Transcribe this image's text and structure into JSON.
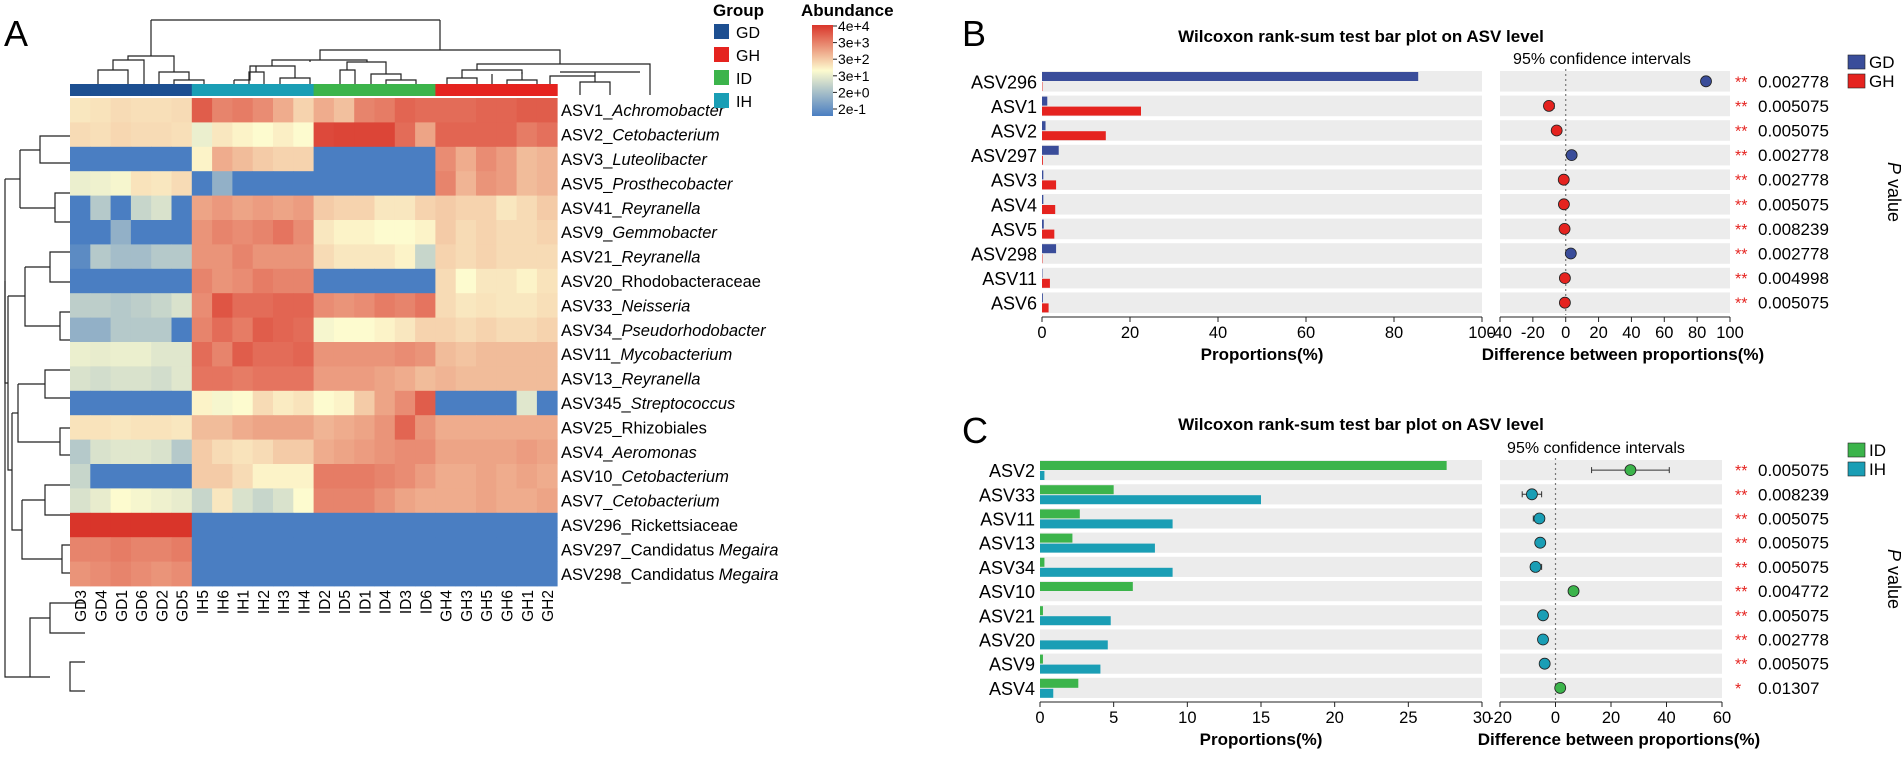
{
  "panel_labels": {
    "A": "A",
    "B": "B",
    "C": "C"
  },
  "chart_data": [
    {
      "type": "heatmap",
      "panel": "A",
      "columns": [
        "GD3",
        "GD4",
        "GD1",
        "GD6",
        "GD2",
        "GD5",
        "IH5",
        "IH6",
        "IH1",
        "IH2",
        "IH3",
        "IH4",
        "ID2",
        "ID5",
        "ID1",
        "ID4",
        "ID3",
        "ID6",
        "GH4",
        "GH3",
        "GH5",
        "GH6",
        "GH1",
        "GH2"
      ],
      "column_groups": [
        "GD",
        "GD",
        "GD",
        "GD",
        "GD",
        "GD",
        "IH",
        "IH",
        "IH",
        "IH",
        "IH",
        "IH",
        "ID",
        "ID",
        "ID",
        "ID",
        "ID",
        "ID",
        "GH",
        "GH",
        "GH",
        "GH",
        "GH",
        "GH"
      ],
      "rows": [
        {
          "id": "ASV1_",
          "taxon": "Achromobacter",
          "italic": true
        },
        {
          "id": "ASV2_",
          "taxon": "Cetobacterium",
          "italic": true
        },
        {
          "id": "ASV3_",
          "taxon": "Luteolibacter",
          "italic": true
        },
        {
          "id": "ASV5_",
          "taxon": "Prosthecobacter",
          "italic": true
        },
        {
          "id": "ASV41_",
          "taxon": "Reyranella",
          "italic": true
        },
        {
          "id": "ASV9_",
          "taxon": "Gemmobacter",
          "italic": true
        },
        {
          "id": "ASV21_",
          "taxon": "Reyranella",
          "italic": true
        },
        {
          "id": "ASV20_",
          "taxon": "Rhodobacteraceae",
          "italic": false
        },
        {
          "id": "ASV33_",
          "taxon": "Neisseria",
          "italic": true
        },
        {
          "id": "ASV34_",
          "taxon": "Pseudorhodobacter",
          "italic": true
        },
        {
          "id": "ASV11_",
          "taxon": "Mycobacterium",
          "italic": true
        },
        {
          "id": "ASV13_",
          "taxon": "Reyranella",
          "italic": true
        },
        {
          "id": "ASV345_",
          "taxon": "Streptococcus",
          "italic": true
        },
        {
          "id": "ASV25_",
          "taxon": "Rhizobiales",
          "italic": false
        },
        {
          "id": "ASV4_",
          "taxon": "Aeromonas",
          "italic": true
        },
        {
          "id": "ASV10_",
          "taxon": "Cetobacterium",
          "italic": true
        },
        {
          "id": "ASV7_",
          "taxon": "Cetobacterium",
          "italic": true
        },
        {
          "id": "ASV296_",
          "taxon": "Rickettsiaceae",
          "italic": false
        },
        {
          "id": "ASV297_Candidatus ",
          "taxon": "Megaira",
          "italic": true
        },
        {
          "id": "ASV298_Candidatus ",
          "taxon": "Megaira",
          "italic": true
        }
      ],
      "values_scale": "0 = 2e-1 (blue) ... 1 = 4e+4 (red)",
      "values": [
        [
          0.55,
          0.56,
          0.58,
          0.57,
          0.57,
          0.58,
          0.9,
          0.8,
          0.82,
          0.78,
          0.7,
          0.6,
          0.7,
          0.65,
          0.8,
          0.82,
          0.88,
          0.86,
          0.86,
          0.86,
          0.88,
          0.88,
          0.9,
          0.9
        ],
        [
          0.58,
          0.57,
          0.59,
          0.58,
          0.58,
          0.57,
          0.45,
          0.55,
          0.52,
          0.5,
          0.53,
          0.5,
          0.95,
          0.96,
          0.96,
          0.96,
          0.86,
          0.72,
          0.88,
          0.88,
          0.88,
          0.88,
          0.82,
          0.85
        ],
        [
          0.0,
          0.0,
          0.0,
          0.0,
          0.0,
          0.0,
          0.52,
          0.7,
          0.66,
          0.62,
          0.6,
          0.6,
          0.0,
          0.0,
          0.0,
          0.0,
          0.0,
          0.0,
          0.78,
          0.7,
          0.78,
          0.74,
          0.66,
          0.68
        ],
        [
          0.45,
          0.46,
          0.48,
          0.56,
          0.55,
          0.58,
          0.0,
          0.2,
          0.0,
          0.0,
          0.0,
          0.0,
          0.0,
          0.0,
          0.0,
          0.0,
          0.0,
          0.0,
          0.8,
          0.68,
          0.76,
          0.74,
          0.66,
          0.68
        ],
        [
          0.0,
          0.3,
          0.0,
          0.35,
          0.4,
          0.0,
          0.72,
          0.75,
          0.72,
          0.74,
          0.72,
          0.74,
          0.62,
          0.6,
          0.6,
          0.55,
          0.55,
          0.6,
          0.62,
          0.6,
          0.6,
          0.55,
          0.58,
          0.62
        ],
        [
          0.0,
          0.0,
          0.2,
          0.0,
          0.0,
          0.0,
          0.76,
          0.8,
          0.78,
          0.8,
          0.84,
          0.78,
          0.55,
          0.52,
          0.52,
          0.5,
          0.5,
          0.52,
          0.62,
          0.58,
          0.6,
          0.58,
          0.58,
          0.6
        ],
        [
          0.05,
          0.3,
          0.25,
          0.25,
          0.3,
          0.3,
          0.76,
          0.76,
          0.8,
          0.76,
          0.76,
          0.76,
          0.58,
          0.55,
          0.55,
          0.55,
          0.52,
          0.35,
          0.6,
          0.58,
          0.6,
          0.58,
          0.58,
          0.58
        ],
        [
          0.0,
          0.0,
          0.0,
          0.0,
          0.0,
          0.0,
          0.8,
          0.76,
          0.78,
          0.82,
          0.8,
          0.8,
          0.0,
          0.0,
          0.0,
          0.0,
          0.0,
          0.0,
          0.58,
          0.5,
          0.55,
          0.55,
          0.52,
          0.56
        ],
        [
          0.32,
          0.32,
          0.3,
          0.32,
          0.35,
          0.4,
          0.78,
          0.92,
          0.86,
          0.86,
          0.88,
          0.88,
          0.78,
          0.76,
          0.78,
          0.82,
          0.8,
          0.84,
          0.58,
          0.55,
          0.56,
          0.55,
          0.55,
          0.57
        ],
        [
          0.2,
          0.2,
          0.3,
          0.3,
          0.3,
          0.0,
          0.8,
          0.86,
          0.82,
          0.9,
          0.88,
          0.86,
          0.48,
          0.5,
          0.5,
          0.52,
          0.55,
          0.6,
          0.6,
          0.58,
          0.6,
          0.58,
          0.58,
          0.6
        ],
        [
          0.45,
          0.44,
          0.45,
          0.45,
          0.42,
          0.42,
          0.86,
          0.8,
          0.9,
          0.86,
          0.86,
          0.88,
          0.76,
          0.76,
          0.76,
          0.76,
          0.78,
          0.76,
          0.66,
          0.64,
          0.66,
          0.66,
          0.66,
          0.66
        ],
        [
          0.4,
          0.38,
          0.4,
          0.4,
          0.38,
          0.42,
          0.84,
          0.84,
          0.82,
          0.84,
          0.84,
          0.84,
          0.74,
          0.74,
          0.74,
          0.72,
          0.7,
          0.66,
          0.68,
          0.66,
          0.66,
          0.66,
          0.66,
          0.66
        ],
        [
          0.0,
          0.0,
          0.0,
          0.0,
          0.0,
          0.0,
          0.52,
          0.48,
          0.5,
          0.58,
          0.54,
          0.56,
          0.5,
          0.52,
          0.62,
          0.72,
          0.78,
          0.9,
          0.0,
          0.0,
          0.0,
          0.0,
          0.42,
          0.0
        ],
        [
          0.56,
          0.56,
          0.55,
          0.56,
          0.56,
          0.55,
          0.66,
          0.66,
          0.7,
          0.72,
          0.72,
          0.72,
          0.68,
          0.7,
          0.72,
          0.76,
          0.88,
          0.76,
          0.7,
          0.7,
          0.7,
          0.7,
          0.7,
          0.7
        ],
        [
          0.3,
          0.4,
          0.42,
          0.42,
          0.4,
          0.3,
          0.62,
          0.58,
          0.56,
          0.58,
          0.62,
          0.62,
          0.7,
          0.72,
          0.74,
          0.76,
          0.78,
          0.78,
          0.72,
          0.72,
          0.72,
          0.72,
          0.74,
          0.72
        ],
        [
          0.35,
          0.0,
          0.0,
          0.0,
          0.0,
          0.0,
          0.62,
          0.62,
          0.58,
          0.52,
          0.52,
          0.52,
          0.82,
          0.82,
          0.82,
          0.8,
          0.78,
          0.74,
          0.7,
          0.7,
          0.72,
          0.7,
          0.72,
          0.7
        ],
        [
          0.4,
          0.44,
          0.5,
          0.48,
          0.46,
          0.44,
          0.35,
          0.55,
          0.4,
          0.35,
          0.4,
          0.5,
          0.8,
          0.8,
          0.8,
          0.76,
          0.72,
          0.7,
          0.7,
          0.7,
          0.72,
          0.7,
          0.7,
          0.72
        ],
        [
          1.0,
          1.0,
          1.0,
          1.0,
          1.0,
          1.0,
          0.0,
          0.0,
          0.0,
          0.0,
          0.0,
          0.0,
          0.0,
          0.0,
          0.0,
          0.0,
          0.0,
          0.0,
          0.0,
          0.0,
          0.0,
          0.0,
          0.0,
          0.0
        ],
        [
          0.8,
          0.8,
          0.82,
          0.8,
          0.8,
          0.82,
          0.0,
          0.0,
          0.0,
          0.0,
          0.0,
          0.0,
          0.0,
          0.0,
          0.0,
          0.0,
          0.0,
          0.0,
          0.0,
          0.0,
          0.0,
          0.0,
          0.0,
          0.0
        ],
        [
          0.76,
          0.78,
          0.8,
          0.78,
          0.76,
          0.78,
          0.0,
          0.0,
          0.0,
          0.0,
          0.0,
          0.0,
          0.0,
          0.0,
          0.0,
          0.0,
          0.0,
          0.0,
          0.0,
          0.0,
          0.0,
          0.0,
          0.0,
          0.0
        ]
      ],
      "legend": {
        "group_title": "Group",
        "groups": [
          {
            "label": "GD",
            "color": "#1d4f91"
          },
          {
            "label": "GH",
            "color": "#e5231f"
          },
          {
            "label": "ID",
            "color": "#3cb44b"
          },
          {
            "label": "IH",
            "color": "#1a9eb5"
          }
        ],
        "abundance_title": "Abundance",
        "abundance_ticks": [
          "4e+4",
          "3e+3",
          "3e+2",
          "3e+1",
          "2e+0",
          "2e-1"
        ],
        "color_stops": [
          "#4a7ec2",
          "#fdfbcf",
          "#d9352a"
        ]
      }
    },
    {
      "type": "bar",
      "panel": "B",
      "title": "Wilcoxon rank-sum test bar plot on ASV level",
      "categories": [
        "ASV296",
        "ASV1",
        "ASV2",
        "ASV297",
        "ASV3",
        "ASV4",
        "ASV5",
        "ASV298",
        "ASV11",
        "ASV6"
      ],
      "series": [
        {
          "name": "GD",
          "color": "#3a4d9a",
          "values": [
            85.5,
            1.2,
            0.8,
            3.8,
            0.3,
            0.3,
            0.4,
            3.2,
            0.1,
            0.2
          ]
        },
        {
          "name": "GH",
          "color": "#e5231f",
          "values": [
            0.1,
            22.5,
            14.5,
            0.2,
            3.2,
            3.0,
            2.8,
            0.1,
            1.8,
            1.5
          ]
        }
      ],
      "xlabel": "Proportions(%)",
      "xlim": [
        0,
        100
      ],
      "xticks": [
        "0",
        "20",
        "40",
        "60",
        "80",
        "100"
      ],
      "diff": {
        "subtitle": "95% confidence intervals",
        "xlabel": "Difference between proportions(%)",
        "xlim": [
          -40,
          100
        ],
        "xticks": [
          "-40",
          "-20",
          "0",
          "20",
          "40",
          "60",
          "80",
          "100"
        ],
        "values": [
          85.4,
          -10.2,
          -5.5,
          3.6,
          -1.2,
          -1.1,
          -0.7,
          3.1,
          -0.5,
          -0.5
        ],
        "ci": [
          [
            83,
            88
          ],
          [
            -13,
            -7
          ],
          [
            -8,
            -3
          ],
          [
            2,
            5
          ],
          [
            -2,
            0
          ],
          [
            -2,
            0
          ],
          [
            -2,
            0
          ],
          [
            2,
            4
          ],
          [
            -1,
            0
          ],
          [
            -1,
            0
          ]
        ],
        "dot_colors": [
          "#3a4d9a",
          "#e5231f",
          "#e5231f",
          "#3a4d9a",
          "#e5231f",
          "#e5231f",
          "#e5231f",
          "#3a4d9a",
          "#e5231f",
          "#e5231f"
        ]
      },
      "stars": [
        "**",
        "**",
        "**",
        "**",
        "**",
        "**",
        "**",
        "**",
        "**",
        "**"
      ],
      "pvalues": [
        "0.002778",
        "0.005075",
        "0.005075",
        "0.002778",
        "0.002778",
        "0.005075",
        "0.008239",
        "0.002778",
        "0.004998",
        "0.005075"
      ],
      "pvalue_label_italic": "P",
      "pvalue_label_rest": " value"
    },
    {
      "type": "bar",
      "panel": "C",
      "title": "Wilcoxon rank-sum test bar plot on ASV level",
      "categories": [
        "ASV2",
        "ASV33",
        "ASV11",
        "ASV13",
        "ASV34",
        "ASV10",
        "ASV21",
        "ASV20",
        "ASV9",
        "ASV4"
      ],
      "series": [
        {
          "name": "ID",
          "color": "#3cb44b",
          "values": [
            27.6,
            5.0,
            2.7,
            2.2,
            0.3,
            6.3,
            0.2,
            0.0,
            0.2,
            2.6
          ]
        },
        {
          "name": "IH",
          "color": "#1a9eb5",
          "values": [
            0.3,
            15.0,
            9.0,
            7.8,
            9.0,
            0.0,
            4.8,
            4.6,
            4.1,
            0.9
          ]
        }
      ],
      "xlabel": "Proportions(%)",
      "xlim": [
        0,
        30
      ],
      "xticks": [
        "0",
        "5",
        "10",
        "15",
        "20",
        "25",
        "30"
      ],
      "diff": {
        "subtitle": "95% confidence intervals",
        "xlabel": "Difference between proportions(%)",
        "xlim": [
          -20,
          60
        ],
        "xticks": [
          "-20",
          "0",
          "20",
          "40",
          "60"
        ],
        "values": [
          27,
          -8.5,
          -5.8,
          -5.5,
          -7.2,
          6.5,
          -4.5,
          -4.5,
          -3.9,
          1.7
        ],
        "ci": [
          [
            13,
            41
          ],
          [
            -12,
            -5
          ],
          [
            -8,
            -4
          ],
          [
            -7,
            -4
          ],
          [
            -9,
            -5
          ],
          [
            5,
            8
          ],
          [
            -6,
            -3
          ],
          [
            -6,
            -3
          ],
          [
            -5,
            -3
          ],
          [
            1,
            2.5
          ]
        ],
        "dot_colors": [
          "#3cb44b",
          "#1a9eb5",
          "#1a9eb5",
          "#1a9eb5",
          "#1a9eb5",
          "#3cb44b",
          "#1a9eb5",
          "#1a9eb5",
          "#1a9eb5",
          "#3cb44b"
        ]
      },
      "stars": [
        "**",
        "**",
        "**",
        "**",
        "**",
        "**",
        "**",
        "**",
        "**",
        "*"
      ],
      "pvalues": [
        "0.005075",
        "0.008239",
        "0.005075",
        "0.005075",
        "0.005075",
        "0.004772",
        "0.005075",
        "0.002778",
        "0.005075",
        "0.01307"
      ],
      "pvalue_label_italic": "P",
      "pvalue_label_rest": " value"
    }
  ]
}
